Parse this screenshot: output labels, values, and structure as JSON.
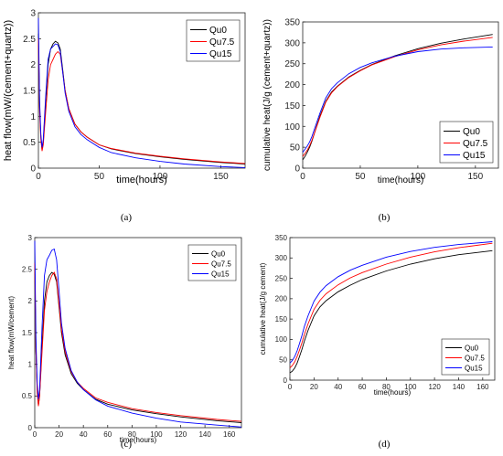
{
  "chart_data": [
    {
      "type": "line",
      "caption": "(a)",
      "xlabel": "time(hours)",
      "ylabel": "heat flow(mW/(cement+quartz))",
      "xlim": [
        0,
        170
      ],
      "ylim": [
        0,
        3
      ],
      "xticks": [
        "0",
        "50",
        "100",
        "150"
      ],
      "xtick_values": [
        0,
        50,
        100,
        150
      ],
      "yticks": [
        "0",
        "0.5",
        "1",
        "1.5",
        "2",
        "2.5",
        "3"
      ],
      "ytick_values": [
        0,
        0.5,
        1,
        1.5,
        2,
        2.5,
        3
      ],
      "legend_position": "top-right",
      "series": [
        {
          "name": "Qu0",
          "color": "#000000",
          "x": [
            0,
            1,
            2,
            3,
            4,
            6,
            8,
            10,
            12,
            14,
            16,
            18,
            20,
            22,
            25,
            30,
            35,
            40,
            50,
            60,
            80,
            100,
            120,
            150,
            170
          ],
          "y": [
            2.6,
            1.2,
            0.6,
            0.35,
            0.5,
            1.3,
            2.0,
            2.3,
            2.4,
            2.45,
            2.42,
            2.3,
            1.9,
            1.5,
            1.15,
            0.85,
            0.7,
            0.6,
            0.45,
            0.37,
            0.28,
            0.22,
            0.17,
            0.11,
            0.08
          ]
        },
        {
          "name": "Qu7.5",
          "color": "#ff0000",
          "x": [
            0,
            1,
            2,
            3,
            4,
            6,
            8,
            10,
            12,
            14,
            16,
            18,
            20,
            22,
            25,
            30,
            35,
            40,
            50,
            60,
            80,
            100,
            120,
            150,
            170
          ],
          "y": [
            2.5,
            1.1,
            0.55,
            0.33,
            0.45,
            1.1,
            1.7,
            2.0,
            2.1,
            2.2,
            2.25,
            2.2,
            1.85,
            1.5,
            1.15,
            0.85,
            0.7,
            0.6,
            0.45,
            0.38,
            0.29,
            0.23,
            0.18,
            0.12,
            0.09
          ]
        },
        {
          "name": "Qu15",
          "color": "#0000ff",
          "x": [
            0,
            1,
            2,
            3,
            4,
            6,
            8,
            10,
            12,
            14,
            16,
            18,
            20,
            22,
            25,
            30,
            35,
            40,
            50,
            60,
            80,
            100,
            120,
            150,
            170
          ],
          "y": [
            2.9,
            1.3,
            0.65,
            0.4,
            0.55,
            1.4,
            2.1,
            2.3,
            2.35,
            2.4,
            2.38,
            2.25,
            1.85,
            1.45,
            1.1,
            0.8,
            0.65,
            0.55,
            0.4,
            0.3,
            0.2,
            0.13,
            0.08,
            0.03,
            0.01
          ]
        }
      ]
    },
    {
      "type": "line",
      "caption": "(b)",
      "xlabel": "time(hours)",
      "ylabel": "cumulative heat(J/g (cement+quartz))",
      "xlim": [
        0,
        170
      ],
      "ylim": [
        0,
        350
      ],
      "xticks": [
        "0",
        "50",
        "100",
        "150"
      ],
      "xtick_values": [
        0,
        50,
        100,
        150
      ],
      "yticks": [
        "0",
        "50",
        "100",
        "150",
        "200",
        "250",
        "300",
        "350"
      ],
      "ytick_values": [
        0,
        50,
        100,
        150,
        200,
        250,
        300,
        350
      ],
      "legend_position": "bottom-right",
      "series": [
        {
          "name": "Qu0",
          "color": "#000000",
          "x": [
            0,
            2,
            4,
            6,
            8,
            10,
            12,
            15,
            20,
            25,
            30,
            40,
            50,
            60,
            80,
            100,
            120,
            140,
            165
          ],
          "y": [
            20,
            28,
            38,
            50,
            65,
            82,
            100,
            125,
            160,
            182,
            196,
            218,
            234,
            248,
            269,
            286,
            299,
            309,
            320
          ]
        },
        {
          "name": "Qu7.5",
          "color": "#ff0000",
          "x": [
            0,
            2,
            4,
            6,
            8,
            10,
            12,
            15,
            20,
            25,
            30,
            40,
            50,
            60,
            80,
            100,
            120,
            140,
            165
          ],
          "y": [
            28,
            35,
            43,
            54,
            67,
            82,
            98,
            122,
            158,
            180,
            195,
            217,
            233,
            247,
            267,
            283,
            295,
            304,
            313
          ]
        },
        {
          "name": "Qu15",
          "color": "#0000ff",
          "x": [
            0,
            2,
            4,
            6,
            8,
            10,
            12,
            15,
            20,
            25,
            30,
            40,
            50,
            60,
            80,
            100,
            120,
            140,
            165
          ],
          "y": [
            38,
            45,
            53,
            63,
            76,
            92,
            108,
            132,
            168,
            190,
            204,
            226,
            241,
            252,
            268,
            279,
            285,
            288,
            290
          ]
        }
      ]
    },
    {
      "type": "line",
      "caption": "(c)",
      "xlabel": "time(hours)",
      "ylabel": "heat flow(mW/cement)",
      "xlim": [
        0,
        170
      ],
      "ylim": [
        0,
        3
      ],
      "xticks": [
        "0",
        "20",
        "40",
        "60",
        "80",
        "100",
        "120",
        "140",
        "160"
      ],
      "xtick_values": [
        0,
        20,
        40,
        60,
        80,
        100,
        120,
        140,
        160
      ],
      "yticks": [
        "0",
        "0.5",
        "1",
        "1.5",
        "2",
        "2.5",
        "3"
      ],
      "ytick_values": [
        0,
        0.5,
        1,
        1.5,
        2,
        2.5,
        3
      ],
      "legend_position": "top-right",
      "series": [
        {
          "name": "Qu0",
          "color": "#000000",
          "x": [
            0,
            1,
            2,
            3,
            4,
            6,
            8,
            10,
            12,
            14,
            16,
            18,
            20,
            22,
            25,
            30,
            35,
            40,
            50,
            60,
            80,
            100,
            120,
            150,
            170
          ],
          "y": [
            2.6,
            1.2,
            0.6,
            0.35,
            0.5,
            1.3,
            2.0,
            2.3,
            2.4,
            2.45,
            2.42,
            2.3,
            1.9,
            1.5,
            1.15,
            0.85,
            0.7,
            0.6,
            0.45,
            0.37,
            0.28,
            0.22,
            0.17,
            0.11,
            0.08
          ]
        },
        {
          "name": "Qu7.5",
          "color": "#ff0000",
          "x": [
            0,
            1,
            2,
            3,
            4,
            6,
            8,
            10,
            12,
            14,
            16,
            18,
            20,
            22,
            25,
            30,
            35,
            40,
            50,
            60,
            80,
            100,
            120,
            150,
            170
          ],
          "y": [
            2.6,
            1.2,
            0.55,
            0.34,
            0.5,
            1.2,
            1.85,
            2.15,
            2.3,
            2.4,
            2.45,
            2.35,
            1.95,
            1.55,
            1.2,
            0.88,
            0.72,
            0.62,
            0.47,
            0.4,
            0.3,
            0.24,
            0.19,
            0.13,
            0.1
          ]
        },
        {
          "name": "Qu15",
          "color": "#0000ff",
          "x": [
            0,
            1,
            2,
            3,
            4,
            6,
            8,
            10,
            12,
            14,
            16,
            18,
            20,
            22,
            25,
            30,
            35,
            40,
            50,
            60,
            80,
            100,
            120,
            150,
            170
          ],
          "y": [
            2.95,
            1.4,
            0.7,
            0.45,
            0.6,
            1.6,
            2.4,
            2.65,
            2.72,
            2.8,
            2.82,
            2.65,
            2.15,
            1.65,
            1.25,
            0.9,
            0.72,
            0.6,
            0.44,
            0.34,
            0.23,
            0.15,
            0.09,
            0.04,
            0.01
          ]
        }
      ]
    },
    {
      "type": "line",
      "caption": "(d)",
      "xlabel": "time(hours)",
      "ylabel": "cumulative heat(J/g cement)",
      "xlim": [
        0,
        170
      ],
      "ylim": [
        0,
        350
      ],
      "xticks": [
        "0",
        "20",
        "40",
        "60",
        "80",
        "100",
        "120",
        "140",
        "160"
      ],
      "xtick_values": [
        0,
        20,
        40,
        60,
        80,
        100,
        120,
        140,
        160
      ],
      "yticks": [
        "0",
        "50",
        "100",
        "150",
        "200",
        "250",
        "300",
        "350"
      ],
      "ytick_values": [
        0,
        50,
        100,
        150,
        200,
        250,
        300,
        350
      ],
      "legend_position": "bottom-right",
      "series": [
        {
          "name": "Qu0",
          "color": "#000000",
          "x": [
            0,
            2,
            4,
            6,
            8,
            10,
            12,
            15,
            20,
            25,
            30,
            40,
            50,
            60,
            80,
            100,
            120,
            140,
            168
          ],
          "y": [
            18,
            22,
            30,
            42,
            58,
            76,
            96,
            122,
            158,
            180,
            195,
            217,
            233,
            247,
            268,
            285,
            298,
            308,
            318
          ]
        },
        {
          "name": "Qu7.5",
          "color": "#ff0000",
          "x": [
            0,
            2,
            4,
            6,
            8,
            10,
            12,
            15,
            20,
            25,
            30,
            40,
            50,
            60,
            80,
            100,
            120,
            140,
            168
          ],
          "y": [
            30,
            36,
            45,
            58,
            74,
            92,
            112,
            138,
            174,
            196,
            212,
            234,
            251,
            264,
            285,
            302,
            315,
            325,
            336
          ]
        },
        {
          "name": "Qu15",
          "color": "#0000ff",
          "x": [
            0,
            2,
            4,
            6,
            8,
            10,
            12,
            15,
            20,
            25,
            30,
            40,
            50,
            60,
            80,
            100,
            120,
            140,
            168
          ],
          "y": [
            42,
            48,
            58,
            72,
            90,
            110,
            132,
            158,
            194,
            216,
            232,
            254,
            270,
            282,
            302,
            316,
            326,
            333,
            340
          ]
        }
      ]
    }
  ]
}
